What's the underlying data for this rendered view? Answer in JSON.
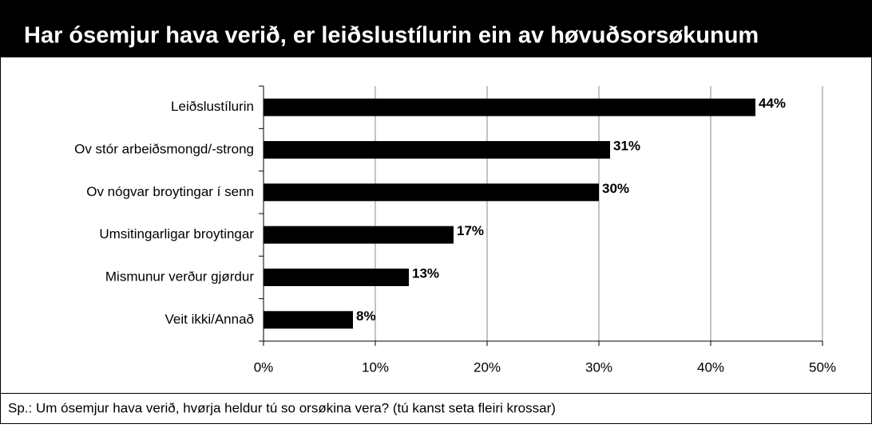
{
  "chart_data": {
    "type": "bar",
    "orientation": "horizontal",
    "title": "Har ósemjur hava verið, er leiðslustílurin ein av høvuðsorsøkunum",
    "note": "Sp.: Um ósemjur hava verið, hvørja heldur tú so orsøkina vera? (tú kanst seta fleiri krossar)",
    "categories": [
      "Leiðslustílurin",
      "Ov stór arbeiðsmongd/-strong",
      "Ov nógvar broytingar í senn",
      "Umsitingarligar broytingar",
      "Mismunur verður gjørdur",
      "Veit ikki/Annað"
    ],
    "values": [
      44,
      31,
      30,
      17,
      13,
      8
    ],
    "value_labels": [
      "44%",
      "31%",
      "30%",
      "17%",
      "13%",
      "8%"
    ],
    "color": "#000000",
    "xlim": [
      0,
      50
    ],
    "xticks": [
      {
        "value": 0,
        "label": "0%"
      },
      {
        "value": 10,
        "label": "10%"
      },
      {
        "value": 20,
        "label": "20%"
      },
      {
        "value": 30,
        "label": "30%"
      },
      {
        "value": 40,
        "label": "40%"
      },
      {
        "value": 50,
        "label": "50%"
      }
    ],
    "grid": true
  }
}
